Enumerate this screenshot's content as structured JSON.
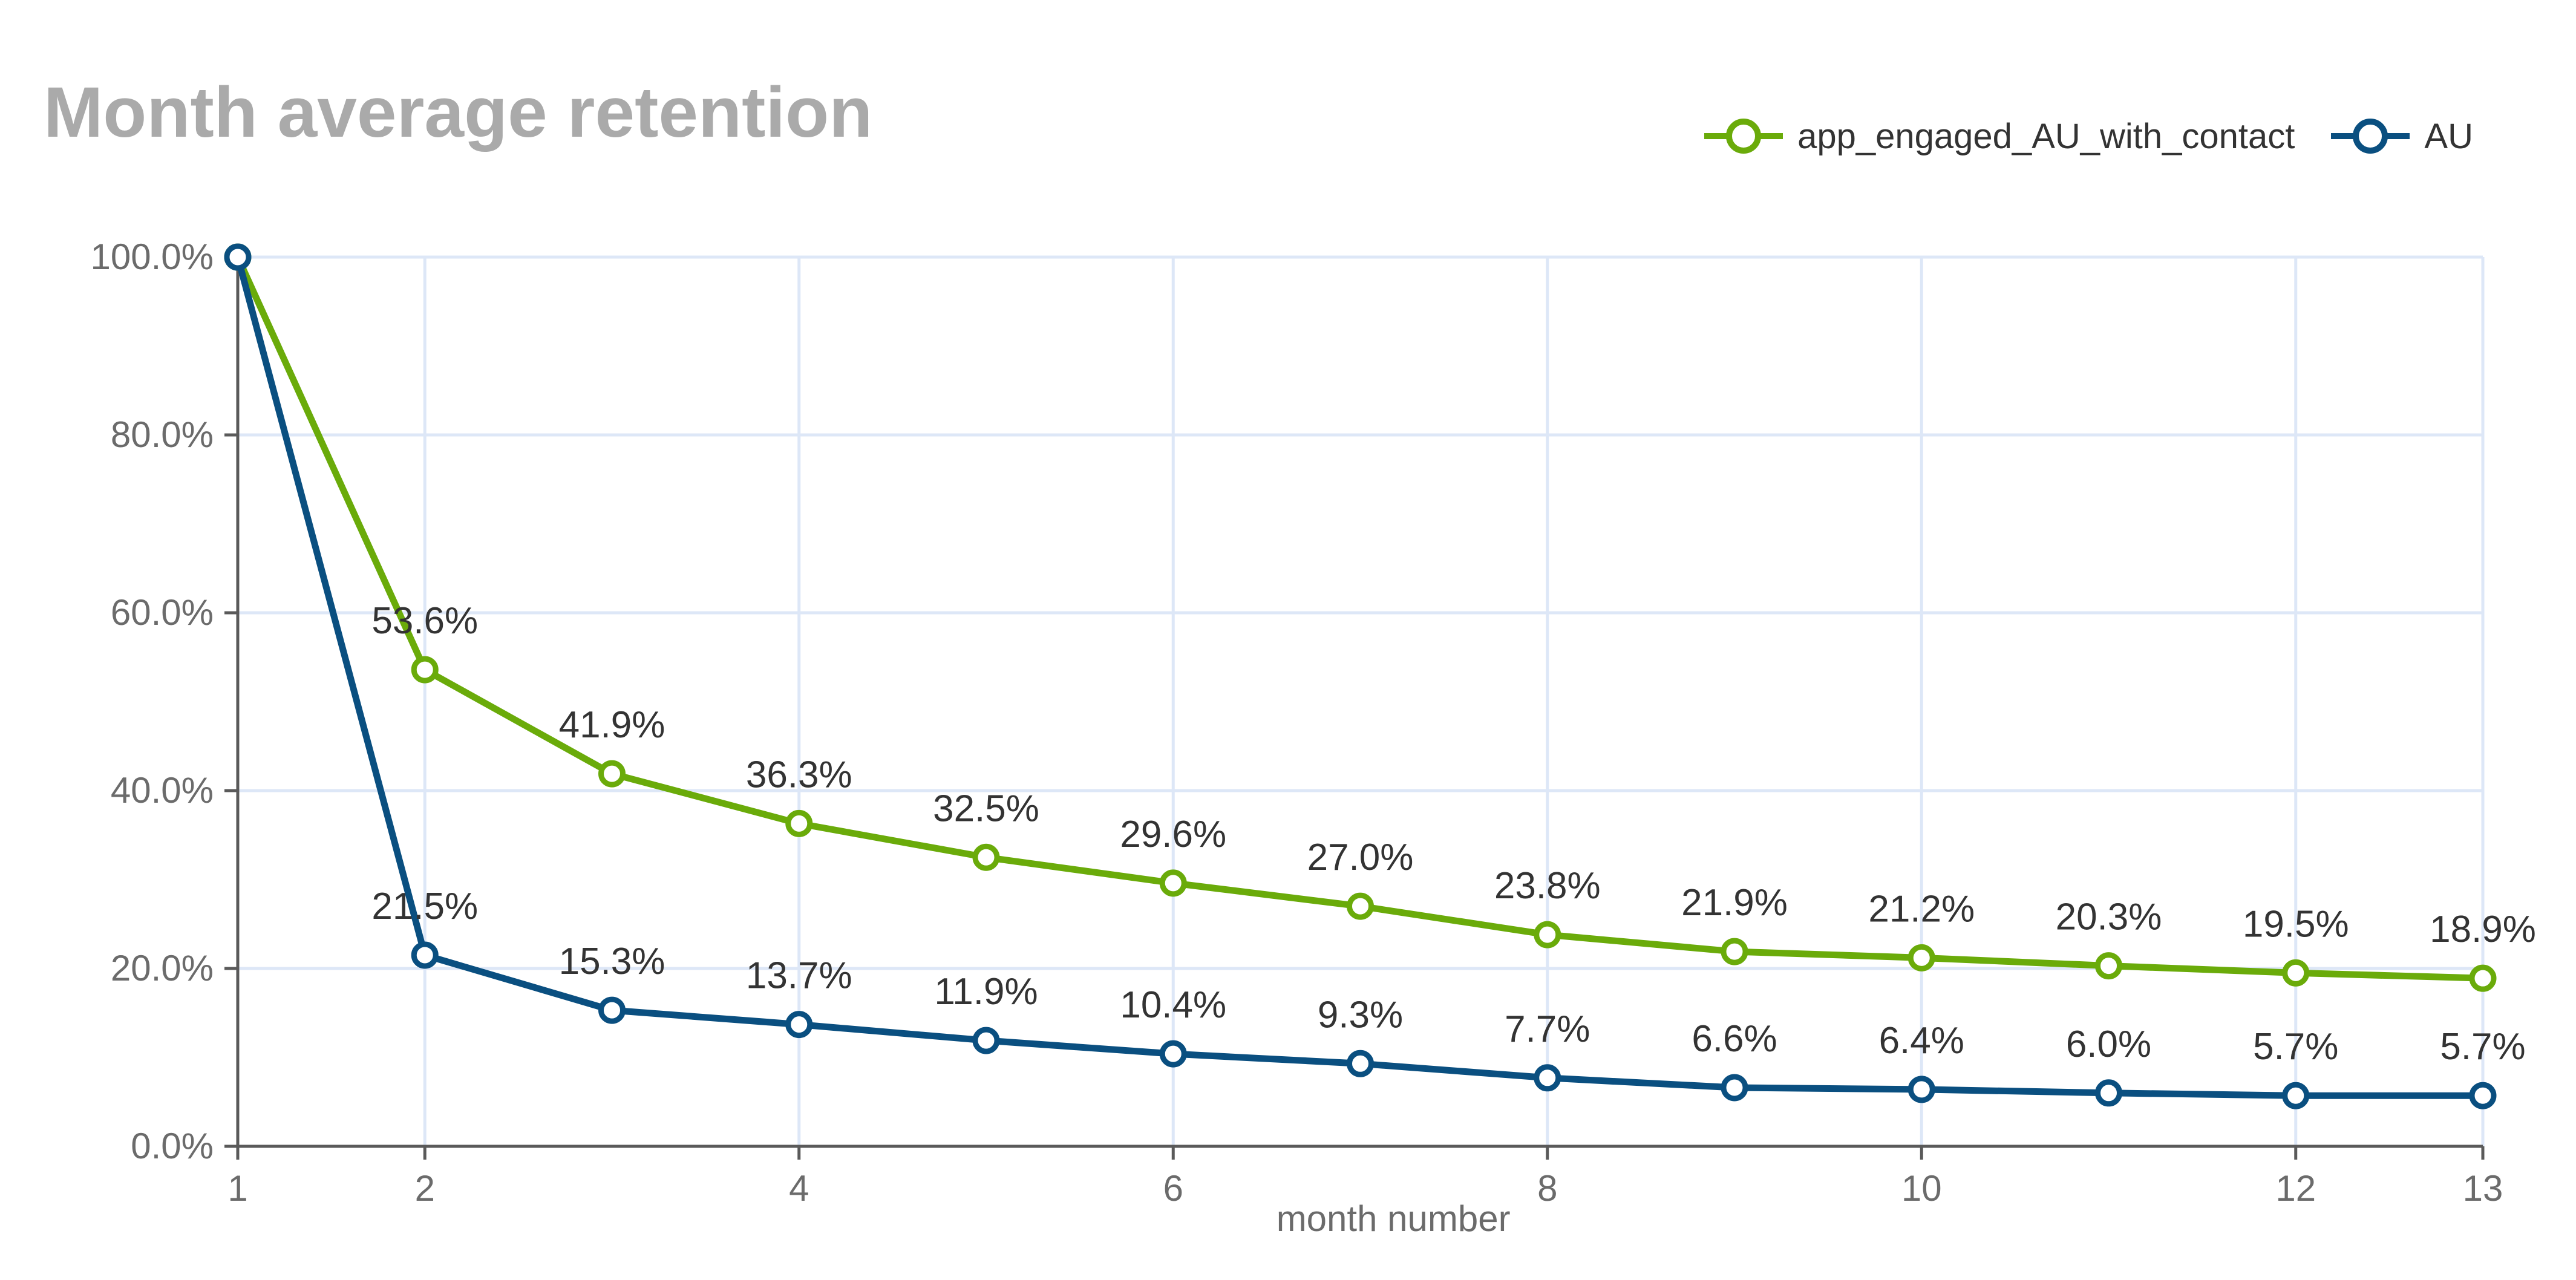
{
  "chart_data": {
    "type": "line",
    "title": "Month average retention",
    "xlabel": "month number",
    "ylabel": "",
    "x": [
      1,
      2,
      3,
      4,
      5,
      6,
      7,
      8,
      9,
      10,
      11,
      12,
      13
    ],
    "x_ticks": [
      1,
      2,
      4,
      6,
      8,
      10,
      12,
      13
    ],
    "xlim": [
      1,
      13
    ],
    "ylim": [
      0,
      100
    ],
    "y_ticks": [
      "0.0%",
      "20.0%",
      "40.0%",
      "60.0%",
      "80.0%",
      "100.0%"
    ],
    "grid": true,
    "legend_position": "top-right",
    "series": [
      {
        "name": "app_engaged_AU_with_contact",
        "color": "#6aab0a",
        "values": [
          100,
          53.6,
          41.9,
          36.3,
          32.5,
          29.6,
          27.0,
          23.8,
          21.9,
          21.2,
          20.3,
          19.5,
          18.9
        ],
        "labels": [
          "",
          "53.6%",
          "41.9%",
          "36.3%",
          "32.5%",
          "29.6%",
          "27.0%",
          "23.8%",
          "21.9%",
          "21.2%",
          "20.3%",
          "19.5%",
          "18.9%"
        ]
      },
      {
        "name": "AU",
        "color": "#0a4f80",
        "values": [
          100,
          21.5,
          15.3,
          13.7,
          11.9,
          10.4,
          9.3,
          7.7,
          6.6,
          6.4,
          6.0,
          5.7,
          5.7
        ],
        "labels": [
          "",
          "21.5%",
          "15.3%",
          "13.7%",
          "11.9%",
          "10.4%",
          "9.3%",
          "7.7%",
          "6.6%",
          "6.4%",
          "6.0%",
          "5.7%",
          "5.7%"
        ]
      }
    ]
  }
}
